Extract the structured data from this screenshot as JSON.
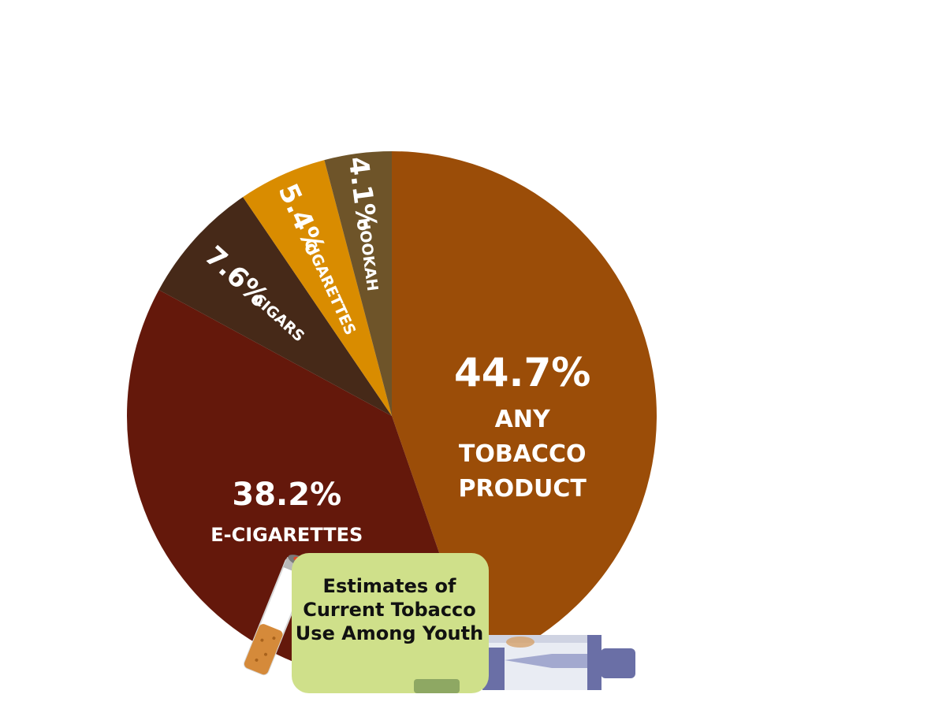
{
  "chart_data": {
    "type": "pie",
    "title": "Estimates of Current Tobacco Use Among Youth",
    "title_lines": [
      "Estimates of",
      "Current Tobacco",
      "Use Among Youth"
    ],
    "slices": [
      {
        "category": "ANY TOBACCO PRODUCT",
        "label_lines": [
          "ANY",
          "TOBACCO",
          "PRODUCT"
        ],
        "value": 44.7,
        "value_label": "44.7%",
        "color": "#9b4d08"
      },
      {
        "category": "E-CIGARETTES",
        "label_lines": [
          "E-CIGARETTES"
        ],
        "value": 38.2,
        "value_label": "38.2%",
        "color": "#64180b"
      },
      {
        "category": "CIGARS",
        "label_lines": [
          "CIGARS"
        ],
        "value": 7.6,
        "value_label": "7.6%",
        "color": "#462918"
      },
      {
        "category": "CIGARETTES",
        "label_lines": [
          "CIGARETTES"
        ],
        "value": 5.4,
        "value_label": "5.4%",
        "color": "#d98c00"
      },
      {
        "category": "HOOKAH",
        "label_lines": [
          "HOOKAH"
        ],
        "value": 4.1,
        "value_label": "4.1%",
        "color": "#6e5429"
      }
    ]
  },
  "colors": {
    "caption_box": "#cfe08a",
    "caption_text": "#111111",
    "label_text": "#ffffff"
  },
  "icons": [
    "cigarette-icon",
    "vape-cartridge-icon"
  ]
}
